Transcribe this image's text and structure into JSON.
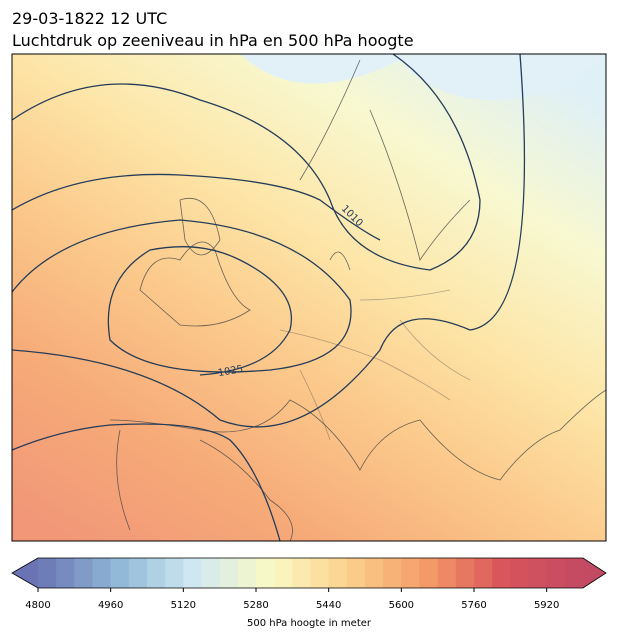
{
  "header": {
    "line1": "29-03-1822 12 UTC",
    "line2": "Luchtdruk op zeeniveau in hPa en 500 hPa hoogte"
  },
  "contour_labels": [
    "1010",
    "1025"
  ],
  "colorbar": {
    "label": "500 hPa hoogte in meter",
    "lim": [
      4800,
      6000
    ],
    "level_step": 40,
    "ticks": [
      4800,
      4960,
      5120,
      5280,
      5440,
      5600,
      5760,
      5920
    ],
    "colors": [
      "#6a74b4",
      "#8fb6d6",
      "#cfe8f1",
      "#fbf9c4",
      "#fbd08c",
      "#f49a68",
      "#d8545a",
      "#c24a63"
    ]
  }
}
